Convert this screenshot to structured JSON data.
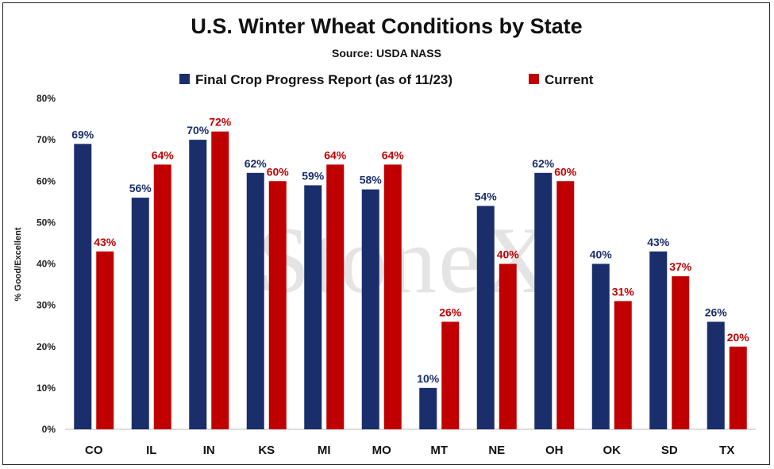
{
  "chart_data": {
    "type": "bar",
    "title": "U.S. Winter Wheat Conditions by State",
    "subtitle": "Source: USDA NASS",
    "ylabel": "% Good/Excellent",
    "xlabel": "",
    "ylim": [
      0,
      80
    ],
    "yticks": [
      "0%",
      "10%",
      "20%",
      "30%",
      "40%",
      "50%",
      "60%",
      "70%",
      "80%"
    ],
    "grid": false,
    "legend_position": "top",
    "categories": [
      "CO",
      "IL",
      "IN",
      "KS",
      "MI",
      "MO",
      "MT",
      "NE",
      "OH",
      "OK",
      "SD",
      "TX"
    ],
    "series": [
      {
        "name": "Final Crop Progress Report (as of 11/23)",
        "color": "#1a2e6c",
        "values": [
          69,
          56,
          70,
          62,
          59,
          58,
          10,
          54,
          62,
          40,
          43,
          26
        ],
        "labels": [
          "69%",
          "56%",
          "70%",
          "62%",
          "59%",
          "58%",
          "10%",
          "54%",
          "62%",
          "40%",
          "43%",
          "26%"
        ]
      },
      {
        "name": "Current",
        "color": "#c00000",
        "values": [
          43,
          64,
          72,
          60,
          64,
          64,
          26,
          40,
          60,
          31,
          37,
          20
        ],
        "labels": [
          "43%",
          "64%",
          "72%",
          "60%",
          "64%",
          "64%",
          "26%",
          "40%",
          "60%",
          "31%",
          "37%",
          "20%"
        ]
      }
    ],
    "watermark": "StoneX"
  }
}
